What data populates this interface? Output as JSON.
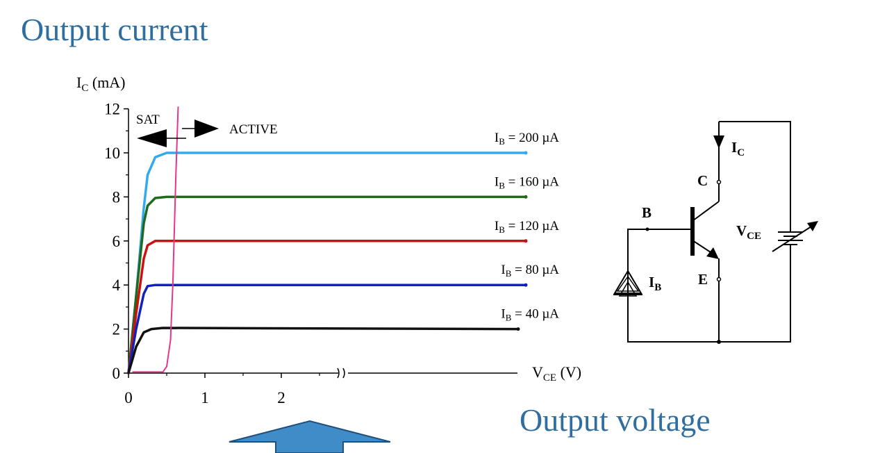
{
  "title": "Output current",
  "subtitle": "Output voltage",
  "chart_data": {
    "type": "line",
    "ylabel": {
      "main": "I",
      "sub": "C",
      "rest": " (mA)"
    },
    "xlabel": {
      "main": "V",
      "sub": "CE",
      "rest": " (V)"
    },
    "xlim": [
      0,
      5
    ],
    "ylim": [
      0,
      12
    ],
    "x_ticks": [
      {
        "value": 0,
        "label": "0"
      },
      {
        "value": 1,
        "label": "1"
      },
      {
        "value": 2,
        "label": "2"
      }
    ],
    "y_ticks": [
      {
        "value": 0,
        "label": "0"
      },
      {
        "value": 2,
        "label": "2"
      },
      {
        "value": 4,
        "label": "4"
      },
      {
        "value": 6,
        "label": "6"
      },
      {
        "value": 8,
        "label": "8"
      },
      {
        "value": 10,
        "label": "10"
      },
      {
        "value": 12,
        "label": "12"
      }
    ],
    "axis_break_at": 2.8,
    "region_labels": {
      "sat": "SAT",
      "active": "ACTIVE"
    },
    "series": [
      {
        "name": "I_B = 200 µA",
        "label_main": "I",
        "label_sub": "B",
        "label_rest": " = 200 µA",
        "color": "#33aaee",
        "points": [
          [
            0,
            0
          ],
          [
            0.1,
            3.5
          ],
          [
            0.2,
            7.5
          ],
          [
            0.25,
            9.0
          ],
          [
            0.35,
            9.8
          ],
          [
            0.5,
            10
          ],
          [
            5.2,
            10
          ]
        ]
      },
      {
        "name": "I_B = 160 µA",
        "label_main": "I",
        "label_sub": "B",
        "label_rest": " = 160 µA",
        "color": "#1e6b1e",
        "points": [
          [
            0,
            0
          ],
          [
            0.1,
            3.5
          ],
          [
            0.2,
            6.8
          ],
          [
            0.25,
            7.6
          ],
          [
            0.35,
            7.95
          ],
          [
            0.5,
            8
          ],
          [
            5.2,
            8
          ]
        ]
      },
      {
        "name": "I_B = 120 µA",
        "label_main": "I",
        "label_sub": "B",
        "label_rest": " = 120 µA",
        "color": "#cc1111",
        "points": [
          [
            0,
            0
          ],
          [
            0.1,
            2.7
          ],
          [
            0.2,
            5.2
          ],
          [
            0.25,
            5.8
          ],
          [
            0.35,
            6
          ],
          [
            5.2,
            6
          ]
        ]
      },
      {
        "name": "I_B = 80 µA",
        "label_main": "I",
        "label_sub": "B",
        "label_rest": " = 80 µA",
        "color": "#1122bb",
        "points": [
          [
            0,
            0
          ],
          [
            0.1,
            2.0
          ],
          [
            0.2,
            3.6
          ],
          [
            0.25,
            3.95
          ],
          [
            0.35,
            4
          ],
          [
            5.2,
            4
          ]
        ]
      },
      {
        "name": "I_B = 40 µA",
        "label_main": "I",
        "label_sub": "B",
        "label_rest": " = 40 µA",
        "color": "#111111",
        "points": [
          [
            0,
            0
          ],
          [
            0.1,
            1.2
          ],
          [
            0.2,
            1.85
          ],
          [
            0.3,
            2.0
          ],
          [
            0.45,
            2.05
          ],
          [
            5.1,
            2.0
          ]
        ]
      }
    ],
    "boundary": {
      "color": "#e8358a",
      "points": [
        [
          0.05,
          0.05
        ],
        [
          0.45,
          0.05
        ],
        [
          0.5,
          0.3
        ],
        [
          0.55,
          1.5
        ],
        [
          0.58,
          4
        ],
        [
          0.62,
          9
        ],
        [
          0.65,
          12.1
        ]
      ]
    }
  },
  "circuit": {
    "collector": "C",
    "base": "B",
    "emitter": "E",
    "ic": {
      "main": "I",
      "sub": "C"
    },
    "ib": {
      "main": "I",
      "sub": "B"
    },
    "vce": {
      "main": "V",
      "sub": "CE"
    }
  },
  "colors": {
    "heading": "#2f6e9e",
    "arrow_fill": "#3f8cc8",
    "arrow_stroke": "#1f4f7a"
  }
}
